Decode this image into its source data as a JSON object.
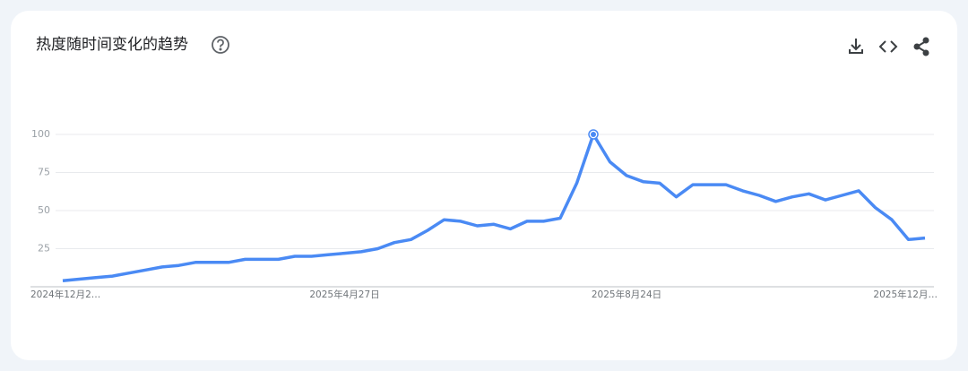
{
  "chart_data": {
    "type": "line",
    "title": "热度随时间变化的趋势",
    "categories": [
      "2024年12月2…",
      null,
      null,
      null,
      null,
      null,
      null,
      null,
      null,
      null,
      null,
      null,
      null,
      null,
      null,
      null,
      null,
      "2025年4月27日",
      null,
      null,
      null,
      null,
      null,
      null,
      null,
      null,
      null,
      null,
      null,
      null,
      null,
      null,
      null,
      null,
      "2025年8月24日",
      null,
      null,
      null,
      null,
      null,
      null,
      null,
      null,
      null,
      null,
      null,
      null,
      null,
      null,
      null,
      null,
      "2025年12月…",
      null
    ],
    "series": [
      {
        "color": "#4a8af4",
        "values": [
          4,
          5,
          6,
          7,
          9,
          11,
          13,
          14,
          16,
          16,
          16,
          18,
          18,
          18,
          20,
          20,
          21,
          22,
          23,
          25,
          29,
          31,
          37,
          44,
          43,
          40,
          41,
          38,
          43,
          43,
          45,
          68,
          100,
          82,
          73,
          69,
          68,
          59,
          67,
          67,
          67,
          63,
          60,
          56,
          59,
          61,
          57,
          60,
          63,
          52,
          44,
          31,
          32
        ]
      }
    ],
    "ylim": [
      0,
      100
    ],
    "yticks": [
      25,
      50,
      75,
      100
    ],
    "grid": true
  }
}
